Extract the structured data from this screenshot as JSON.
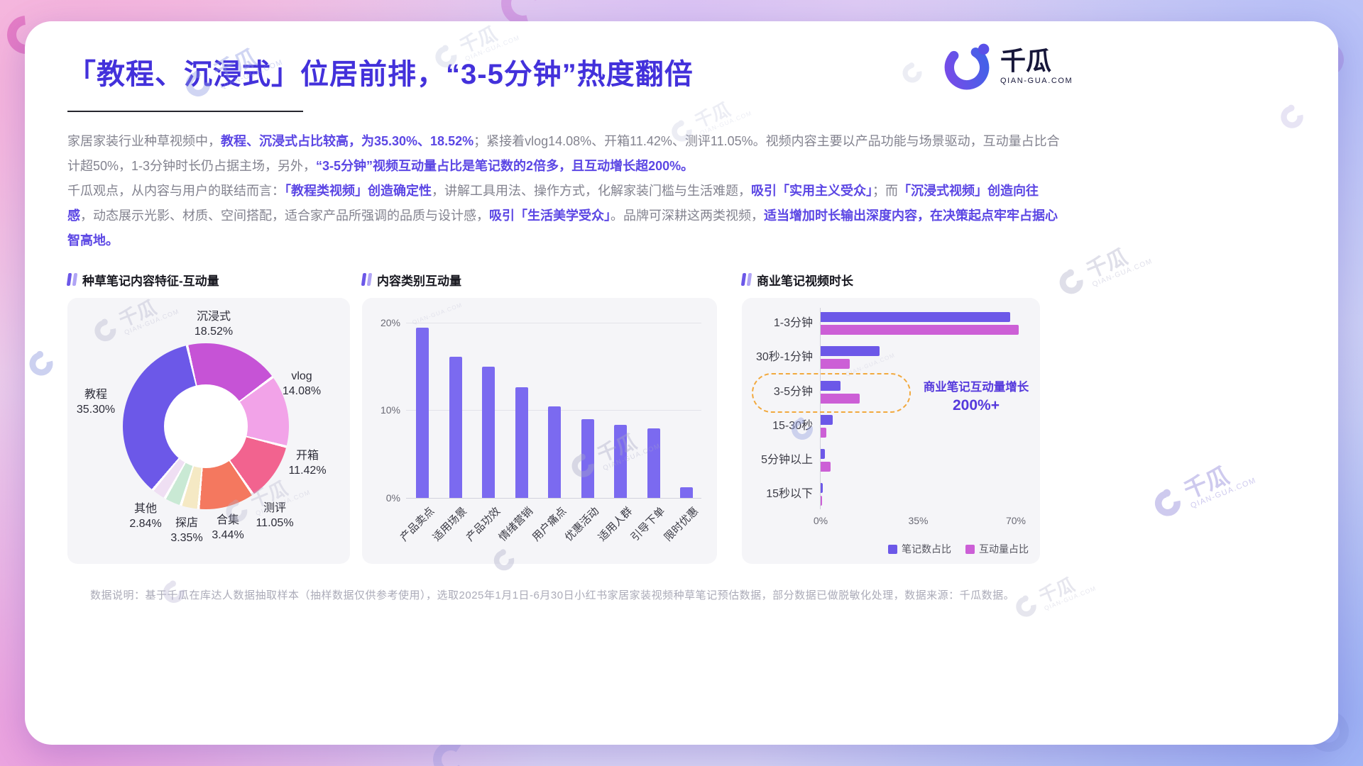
{
  "page": {
    "title": "「教程、沉浸式」位居前排，“3-5分钟”热度翻倍",
    "footer": "数据说明：基于千瓜在库达人数据抽取样本（抽样数据仅供参考使用），选取2025年1月1日-6月30日小红书家居家装视频种草笔记预估数据，部分数据已做脱敏化处理，数据来源：千瓜数据。"
  },
  "logo": {
    "cn": "千瓜",
    "domain": "QIAN-GUA.COM"
  },
  "watermark": {
    "cn": "千瓜",
    "domain": "QIAN-GUA.COM"
  },
  "intro": {
    "p1": [
      {
        "text": "家居家装行业种草视频中，",
        "hl": false
      },
      {
        "text": "教程、沉浸式占比较高，为35.30%、18.52%",
        "hl": true
      },
      {
        "text": "；紧接着vlog14.08%、开箱11.42%、测评11.05%。视频内容主要以产品功能与场景驱动，互动量占比合计超50%，1-3分钟时长仍占据主场，另外，",
        "hl": false
      },
      {
        "text": "“3-5分钟”视频互动量占比是笔记数的2倍多，且互动增长超200%。",
        "hl": true
      }
    ],
    "p2": [
      {
        "text": "千瓜观点，从内容与用户的联结而言：",
        "hl": false
      },
      {
        "text": "「教程类视频」创造确定性",
        "hl": true
      },
      {
        "text": "，讲解工具用法、操作方式，化解家装门槛与生活难题，",
        "hl": false
      },
      {
        "text": "吸引「实用主义受众」",
        "hl": true
      },
      {
        "text": "；而",
        "hl": false
      },
      {
        "text": "「沉浸式视频」创造向往感",
        "hl": true
      },
      {
        "text": "，动态展示光影、材质、空间搭配，适合家产品所强调的品质与设计感，",
        "hl": false
      },
      {
        "text": "吸引「生活美学受众」",
        "hl": true
      },
      {
        "text": "。品牌可深耕这两类视频，",
        "hl": false
      },
      {
        "text": "适当增加时长输出深度内容，在决策起点牢牢占据心智高地。",
        "hl": true
      }
    ]
  },
  "sections": [
    {
      "title": "种草笔记内容特征-互动量"
    },
    {
      "title": "内容类别互动量"
    },
    {
      "title": "商业笔记视频时长"
    }
  ],
  "chart_data": [
    {
      "type": "pie",
      "title": "种草笔记内容特征-互动量",
      "donut": true,
      "slices": [
        {
          "label": "沉浸式",
          "value": 18.52,
          "color": "#c653d6"
        },
        {
          "label": "vlog",
          "value": 14.08,
          "color": "#f2a3e8"
        },
        {
          "label": "开箱",
          "value": 11.42,
          "color": "#f2638f"
        },
        {
          "label": "测评",
          "value": 11.05,
          "color": "#f4785f"
        },
        {
          "label": "合集",
          "value": 3.44,
          "color": "#f5e9c4"
        },
        {
          "label": "探店",
          "value": 3.35,
          "color": "#c9e9d4"
        },
        {
          "label": "其他",
          "value": 2.84,
          "color": "#efdff3"
        },
        {
          "label": "教程",
          "value": 35.3,
          "color": "#6c58e8"
        }
      ]
    },
    {
      "type": "bar",
      "title": "内容类别互动量",
      "categories": [
        "产品卖点",
        "适用场景",
        "产品功效",
        "情绪营销",
        "用户痛点",
        "优惠活动",
        "适用人群",
        "引导下单",
        "限时优惠"
      ],
      "values": [
        19.4,
        16.1,
        15.0,
        12.6,
        10.4,
        9.0,
        8.3,
        7.9,
        1.2
      ],
      "unit": "%",
      "bar_color": "#7b6af0",
      "yticks": [
        0,
        10,
        20
      ],
      "ylim": [
        0,
        22
      ],
      "grid": true,
      "legend": "none"
    },
    {
      "type": "bar",
      "orientation": "horizontal",
      "title": "商业笔记视频时长",
      "categories": [
        "1-3分钟",
        "30秒-1分钟",
        "3-5分钟",
        "15-30秒",
        "5分钟以上",
        "15秒以下"
      ],
      "series": [
        {
          "name": "笔记数占比",
          "color": "#6c58e8",
          "values": [
            68,
            21,
            7,
            4.4,
            1.5,
            0.8
          ]
        },
        {
          "name": "互动量占比",
          "color": "#cc5fd6",
          "values": [
            71,
            10.5,
            14,
            2,
            3.6,
            0.5
          ]
        }
      ],
      "xticks": [
        0,
        35,
        70
      ],
      "xlim": [
        0,
        72
      ],
      "legend_position": "bottom-right",
      "annotation": {
        "line1": "商业笔记互动量增长",
        "line2": "200%+",
        "highlight_category": "3-5分钟"
      }
    }
  ]
}
